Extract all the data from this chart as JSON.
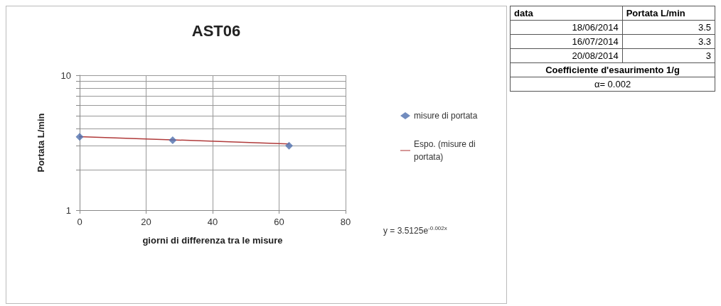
{
  "chart_data": [
    {
      "type": "scatter",
      "title": "AST06",
      "xlabel": "giorni di differenza tra le misure",
      "ylabel": "Portata L/min",
      "series": [
        {
          "name": "misure di portata",
          "type": "scatter",
          "color": "#4f6fae",
          "marker": "diamond",
          "x": [
            0,
            28,
            63
          ],
          "values": [
            3.5,
            3.3,
            3
          ]
        },
        {
          "name": "Espo. (misure di portata)",
          "type": "line",
          "color": "#b03a3a",
          "marker": "none",
          "x": [
            0,
            63
          ],
          "values": [
            3.51,
            3.1
          ]
        }
      ],
      "xlim": [
        0,
        80
      ],
      "xticks": [
        0,
        20,
        40,
        60,
        80
      ],
      "ylim": [
        1,
        10
      ],
      "yticks": [
        1,
        10
      ],
      "log": "y",
      "grid": true,
      "legend": "right",
      "annotations": [
        "y = 3.5125e$^{-0.002x}$"
      ]
    },
    {
      "type": "other",
      "annotations": [
        "data",
        "Portata L/min",
        "18/06/2014",
        "3.5",
        "16/07/2014",
        "3.3",
        "20/08/2014",
        "3",
        "Coefficiente d'esaurimento 1/g",
        "α= 0.002"
      ]
    }
  ]
}
